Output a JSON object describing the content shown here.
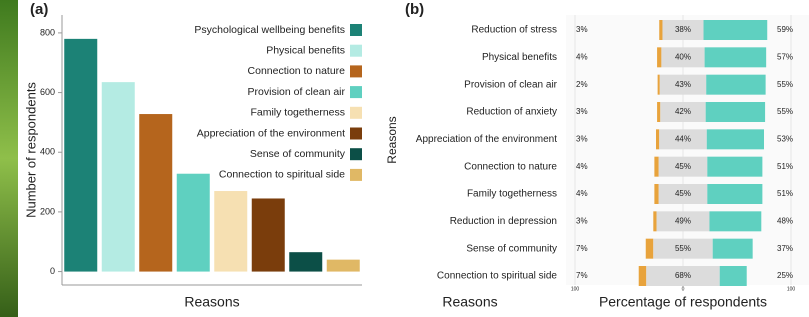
{
  "chart_data": [
    {
      "type": "bar",
      "panel": "(a)",
      "xlabel": "Reasons",
      "ylabel": "Number of respondents",
      "categories": [
        "Psychological wellbeing benefits",
        "Physical benefits",
        "Connection to nature",
        "Provision of clean air",
        "Family togetherness",
        "Appreciation of the environment",
        "Sense of community",
        "Connection to spiritual side"
      ],
      "values": [
        780,
        635,
        528,
        328,
        270,
        245,
        65,
        40
      ],
      "colors": [
        "#1c8276",
        "#b4ebe3",
        "#b5651d",
        "#5fd0c0",
        "#f6e0b2",
        "#7a3d0c",
        "#0c4f47",
        "#e0b865"
      ],
      "ylim": [
        -45,
        860
      ],
      "yticks": [
        0,
        200,
        400,
        600,
        800
      ],
      "legend": "top-right"
    },
    {
      "type": "diverging_bar",
      "panel": "(b)",
      "xlabel": "Percentage of respondents",
      "ylabel": "Reasons",
      "category_label_title": "Reasons",
      "categories": [
        "Reduction of stress",
        "Physical benefits",
        "Provision of clean air",
        "Reduction of anxiety",
        "Appreciation of the environment",
        "Connection to nature",
        "Family togetherness",
        "Reduction in depression",
        "Sense of community",
        "Connection to spiritual side"
      ],
      "series": [
        {
          "color": "#e8a33c",
          "values": [
            3,
            4,
            2,
            3,
            3,
            4,
            4,
            3,
            7,
            7
          ],
          "value_labels": [
            "3%",
            "4%",
            "2%",
            "3%",
            "3%",
            "4%",
            "4%",
            "3%",
            "7%",
            "7%"
          ]
        },
        {
          "color": "#dcdcdc",
          "values": [
            38,
            40,
            43,
            42,
            44,
            45,
            45,
            49,
            55,
            68
          ],
          "value_labels": [
            "38%",
            "40%",
            "43%",
            "42%",
            "44%",
            "45%",
            "45%",
            "49%",
            "55%",
            "68%"
          ]
        },
        {
          "color": "#5fd0c0",
          "values": [
            59,
            57,
            55,
            55,
            53,
            51,
            51,
            48,
            37,
            25
          ],
          "value_labels": [
            "59%",
            "57%",
            "55%",
            "55%",
            "53%",
            "51%",
            "51%",
            "48%",
            "37%",
            "25%"
          ]
        }
      ],
      "xlim": [
        -100,
        117
      ],
      "xticks": [
        {
          "value": -100,
          "label": "100"
        },
        0,
        100
      ],
      "grid": true
    }
  ]
}
